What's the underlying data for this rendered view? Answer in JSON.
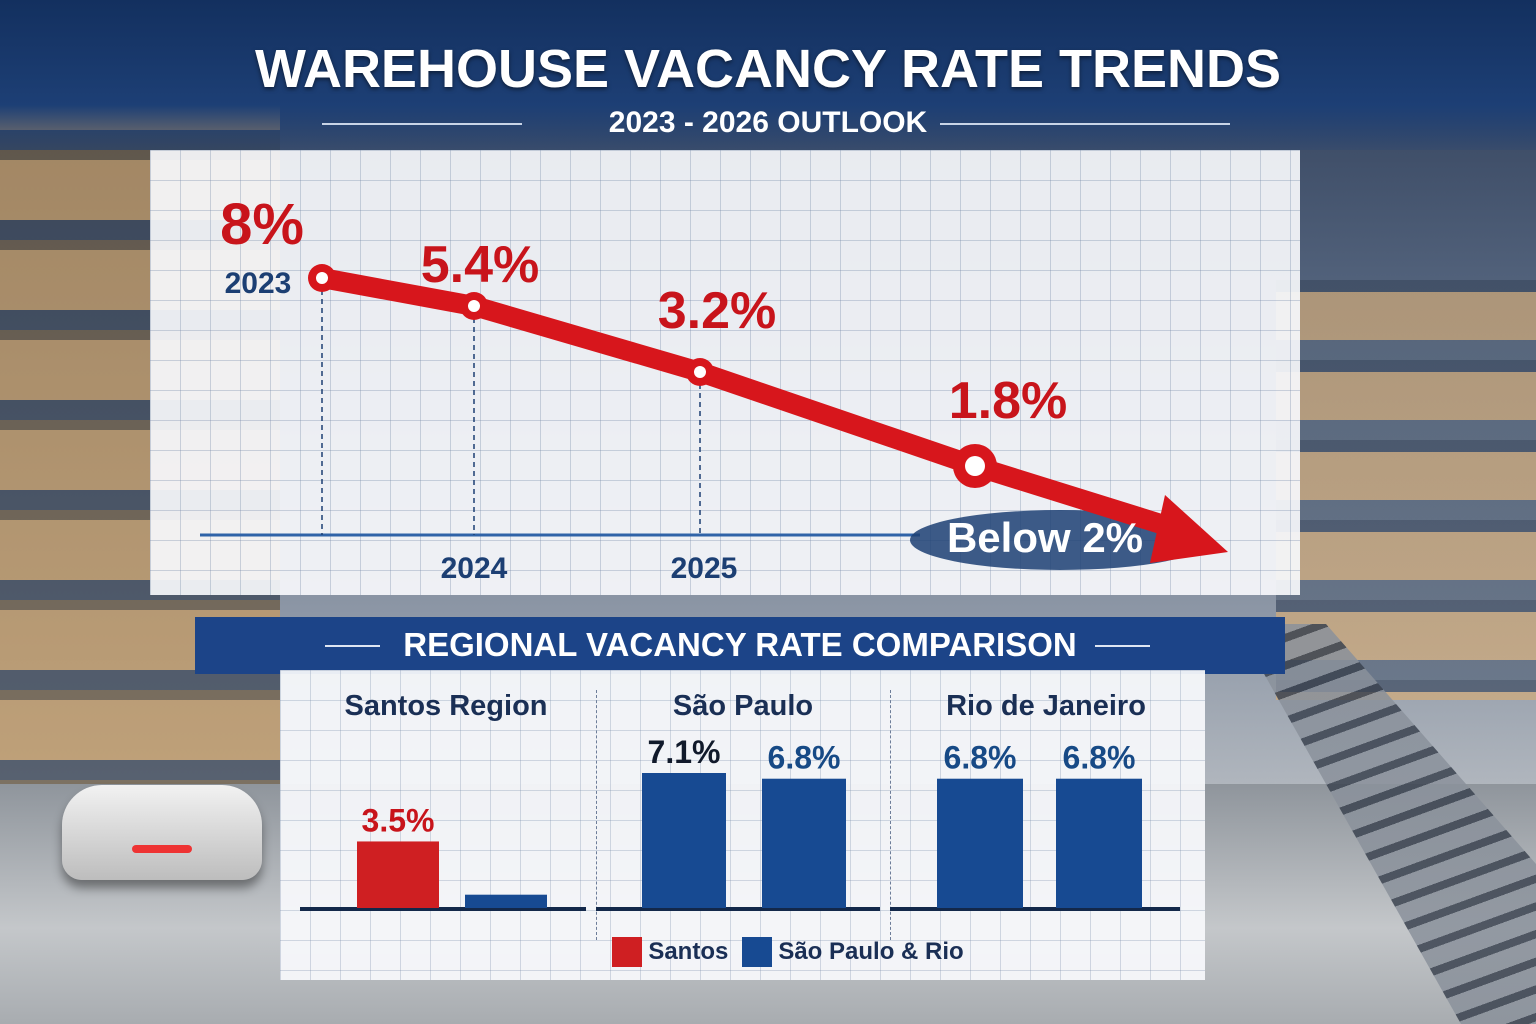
{
  "header": {
    "title": "WAREHOUSE VACANCY RATE TRENDS",
    "subtitle": "2023 - 2026 OUTLOOK"
  },
  "chart_data": [
    {
      "type": "line",
      "title": "WAREHOUSE VACANCY RATE TRENDS",
      "subtitle": "2023 - 2026 OUTLOOK",
      "x_labels": [
        "2023",
        "2024",
        "2025",
        ""
      ],
      "values": [
        8,
        5.4,
        3.2,
        1.8
      ],
      "data_labels": [
        "8%",
        "5.4%",
        "3.2%",
        "1.8%"
      ],
      "annotation": "Below 2%",
      "line_color": "#d7161c",
      "axis_label_color": "#1c3f73",
      "grid": true
    },
    {
      "type": "bar",
      "title": "REGIONAL VACANCY RATE COMPARISON",
      "categories": [
        "Santos Region",
        "São Paulo",
        "Rio de Janeiro"
      ],
      "bars": [
        [
          {
            "value": 3.5,
            "label": "3.5%",
            "series": "Santos"
          },
          {
            "value": 0.7,
            "label": "",
            "series": "São Paulo & Rio"
          }
        ],
        [
          {
            "value": 7.1,
            "label": "7.1%",
            "series": "São Paulo & Rio"
          },
          {
            "value": 6.8,
            "label": "6.8%",
            "series": "São Paulo & Rio"
          }
        ],
        [
          {
            "value": 6.8,
            "label": "6.8%",
            "series": "São Paulo & Rio"
          },
          {
            "value": 6.8,
            "label": "6.8%",
            "series": "São Paulo & Rio"
          }
        ]
      ],
      "legend": [
        {
          "name": "Santos",
          "color": "#cf1f22"
        },
        {
          "name": "São Paulo & Rio",
          "color": "#174a92"
        }
      ],
      "legend_position": "bottom",
      "grid": true
    }
  ]
}
